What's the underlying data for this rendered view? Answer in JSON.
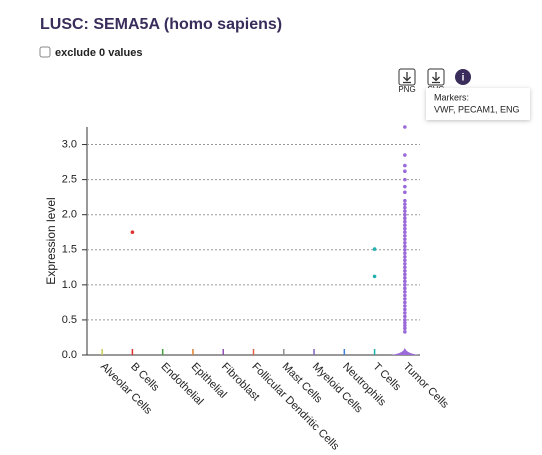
{
  "title": "LUSC: SEMA5A (homo sapiens)",
  "ui": {
    "checkbox_label": "exclude 0 values",
    "png": "PNG",
    "svg": "SVG",
    "tooltip_title": "Markers:",
    "tooltip_text": "VWF, PECAM1, ENG"
  },
  "chart_data": {
    "type": "strip",
    "y_label": "Expression level",
    "categories": [
      "Alveolar Cells",
      "B Cells",
      "Endothelial",
      "Epithelial",
      "Fibroblast",
      "Follicular Dendritic Cells",
      "Mast Cells",
      "Myeloid Cells",
      "Neutrophils",
      "T Cells",
      "Tumor Cells"
    ],
    "colors": [
      "#c8c850",
      "#e03030",
      "#40a040",
      "#e08030",
      "#9050b0",
      "#e06040",
      "#909090",
      "#8060c0",
      "#4080d0",
      "#20b0b0",
      "#9a6ad8"
    ],
    "points": [
      [],
      [
        1.75
      ],
      [],
      [],
      [],
      [],
      [],
      [],
      [],
      [
        1.51,
        1.12
      ],
      [
        0.33,
        0.38,
        0.42,
        0.46,
        0.5,
        0.55,
        0.6,
        0.65,
        0.7,
        0.75,
        0.8,
        0.85,
        0.9,
        0.95,
        1.0,
        1.05,
        1.1,
        1.15,
        1.2,
        1.25,
        1.3,
        1.35,
        1.4,
        1.45,
        1.5,
        1.55,
        1.6,
        1.65,
        1.7,
        1.75,
        1.8,
        1.85,
        1.9,
        1.95,
        2.0,
        2.05,
        2.1,
        2.15,
        2.2,
        2.32,
        2.4,
        2.5,
        2.62,
        2.7,
        2.85,
        3.25
      ]
    ],
    "ylim": [
      0,
      3.25
    ],
    "yticks": [
      {
        "value": 0,
        "label": "0.0"
      },
      {
        "value": 0.5,
        "label": "0.5"
      },
      {
        "value": 1,
        "label": "1.0"
      },
      {
        "value": 1.5,
        "label": "1.5"
      },
      {
        "value": 2,
        "label": "2.0"
      },
      {
        "value": 2.5,
        "label": "2.5"
      },
      {
        "value": 3,
        "label": "3.0"
      }
    ],
    "grid": true
  }
}
